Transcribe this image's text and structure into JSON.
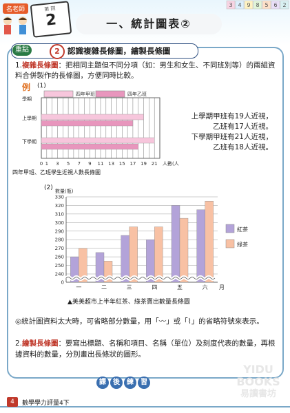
{
  "header": {
    "teacher_tag": "名老師",
    "lesson_small": "第 回",
    "lesson_number": "2",
    "title": "一、統計圖表②",
    "corner_numbers": [
      "3",
      "4",
      "9",
      "8",
      "5",
      "6",
      "2"
    ]
  },
  "key": {
    "label": "重點",
    "number": "2",
    "text": "認識複雜長條圖，繪製長條圖"
  },
  "section1": {
    "marker": "1.",
    "term": "複雜長條圖",
    "text": "：把相同主題但不同分項（如：男生和女生、不同班別等）的兩組資料合併製作的長條圖，方便同時比較。",
    "example_label": "例",
    "example_index": "(1)"
  },
  "chart1": {
    "ylabel": "學期",
    "legend": [
      {
        "name": "四年甲班",
        "color": "#f7c6dc"
      },
      {
        "name": "四年乙班",
        "color": "#e896bd"
      }
    ],
    "rows": [
      "上學期",
      "下學期"
    ],
    "xticks": [
      "0",
      "1",
      "3",
      "5",
      "7",
      "9",
      "11",
      "13",
      "15",
      "17",
      "19",
      "21"
    ],
    "xunit": "人數(人)",
    "caption": "四年甲班、乙班學生近視人數長條圖",
    "annotations": [
      "上學期甲班有19人近視，",
      "乙班有17人近視。",
      "下學期甲班有21人近視，",
      "乙班有18人近視。"
    ]
  },
  "chart2": {
    "index": "(2)",
    "ylabel": "數量(瓶)",
    "yticks": [
      "330",
      "320",
      "310",
      "300",
      "290",
      "280",
      "270",
      "260",
      "250",
      "240",
      "0"
    ],
    "categories": [
      "一",
      "二",
      "三",
      "四",
      "五",
      "六"
    ],
    "xunit": "月",
    "legend": [
      {
        "name": "紅茶",
        "color": "#b3a3d9"
      },
      {
        "name": "綠茶",
        "color": "#f8c1a4"
      }
    ],
    "caption": "▲美美超市上半年紅茶、綠茶賣出數量長條圖"
  },
  "chart_data": [
    {
      "type": "bar",
      "title": "",
      "categories": [
        "上學期",
        "下學期"
      ],
      "series": [
        {
          "name": "四年甲班",
          "values": [
            19,
            21
          ]
        },
        {
          "name": "四年乙班",
          "values": [
            17,
            18
          ]
        }
      ],
      "xlabel": "人數(人)",
      "ylabel": "學期",
      "xlim": [
        0,
        22
      ]
    },
    {
      "type": "bar",
      "title": "美美超市上半年紅茶、綠茶賣出數量長條圖",
      "categories": [
        "一",
        "二",
        "三",
        "四",
        "五",
        "六"
      ],
      "series": [
        {
          "name": "紅茶",
          "values": [
            260,
            265,
            285,
            280,
            320,
            315
          ]
        },
        {
          "name": "綠茶",
          "values": [
            270,
            255,
            295,
            295,
            305,
            325
          ]
        }
      ],
      "xlabel": "月",
      "ylabel": "數量(瓶)",
      "ylim": [
        240,
        330
      ]
    }
  ],
  "notes": {
    "bullet": "◎統計圖資料太大時，可省略部分數量，用「〰」或「⌇」的省略符號來表示。",
    "marker2": "2.",
    "term2": "繪製長條圖",
    "text2": "：要寫出標題、名稱和項目、名稱（單位）及刻度代表的數量，再根據資料的數量，分別畫出長條狀的圖形。"
  },
  "practice": [
    "課",
    "後",
    "練",
    "習"
  ],
  "footer": {
    "page": "4",
    "book": "數學學力評量4下"
  },
  "watermark": {
    "line1": "YIDU",
    "line2": "BOOKS",
    "line3": "易讀書坊"
  }
}
